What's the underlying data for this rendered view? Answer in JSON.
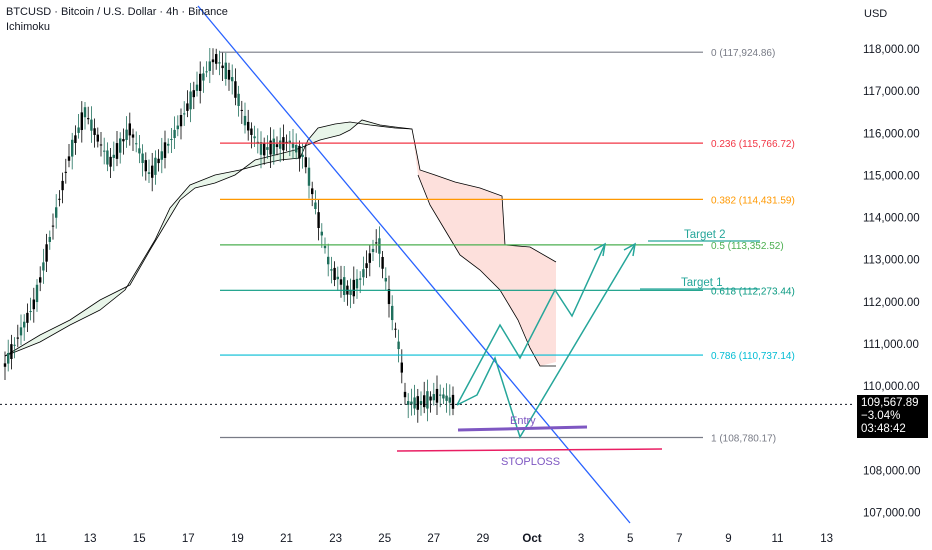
{
  "header": {
    "title": "BTCUSD · Bitcoin / U.S. Dollar · 4h · Binance",
    "indicator": "Ichimoku"
  },
  "axis": {
    "currency": "USD"
  },
  "last_price": {
    "price": "109,567.89",
    "change": "−3.04%",
    "countdown": "03:48:42"
  },
  "colors": {
    "up": "#26a69a",
    "down": "#000000",
    "candle_up": "#1f6f5c",
    "trend": "#2962ff",
    "red": "#f23645",
    "orange": "#ff9800",
    "green": "#4caf50",
    "teal": "#089981",
    "cyan": "#00bcd4",
    "gray": "#787b86",
    "purple": "#7e57c2",
    "pink": "#e91e63",
    "cloud_green": "#e8f5e9",
    "cloud_red": "#fde0dc"
  },
  "chart_data": {
    "type": "candlestick",
    "title": "BTCUSD · Bitcoin / U.S. Dollar · 4h · Binance",
    "ylim": [
      106700,
      118800
    ],
    "y_ticks": [
      "107,000.00",
      "108,000.00",
      "109,000.00",
      "110,000.00",
      "111,000.00",
      "112,000.00",
      "113,000.00",
      "114,000.00",
      "115,000.00",
      "116,000.00",
      "117,000.00",
      "118,000.00"
    ],
    "x_ticks": [
      "11",
      "13",
      "15",
      "17",
      "19",
      "21",
      "23",
      "25",
      "27",
      "29",
      "Oct",
      "3",
      "5",
      "7",
      "9",
      "11",
      "13"
    ],
    "fib_levels": [
      {
        "ratio": "0",
        "price": 117924.86,
        "label": "0 (117,924.86)",
        "color_key": "gray"
      },
      {
        "ratio": "0.236",
        "price": 115766.72,
        "label": "0.236 (115,766.72)",
        "color_key": "red"
      },
      {
        "ratio": "0.382",
        "price": 114431.59,
        "label": "0.382 (114,431.59)",
        "color_key": "orange"
      },
      {
        "ratio": "0.5",
        "price": 113352.52,
        "label": "0.5 (113,352.52)",
        "color_key": "green"
      },
      {
        "ratio": "0.618",
        "price": 112273.44,
        "label": "0.618 (112,273.44)",
        "color_key": "teal"
      },
      {
        "ratio": "0.786",
        "price": 110737.14,
        "label": "0.786 (110,737.14)",
        "color_key": "cyan"
      },
      {
        "ratio": "1",
        "price": 108780.17,
        "label": "1 (108,780.17)",
        "color_key": "gray"
      }
    ],
    "annotations": {
      "target1": "Target 1",
      "target2": "Target 2",
      "entry": "Entry",
      "stoploss": "STOPLOSS"
    },
    "current_price": 109567.89
  }
}
